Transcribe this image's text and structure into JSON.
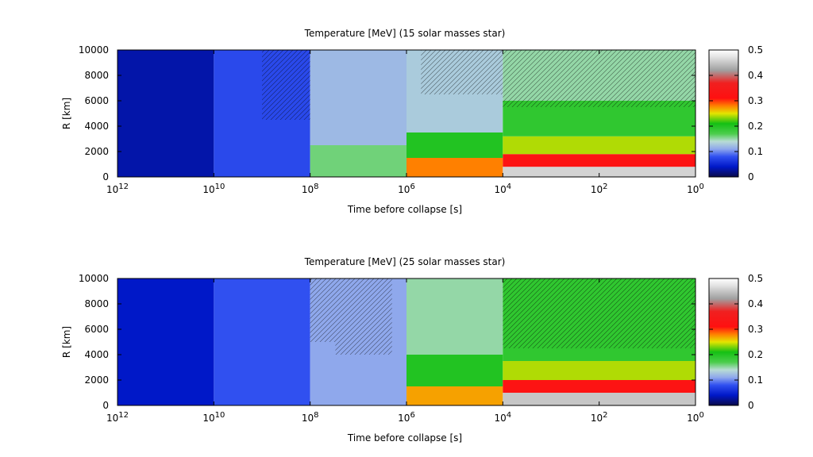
{
  "chart_data": [
    {
      "type": "heatmap",
      "title": "Temperature [MeV] (15 solar masses star)",
      "xlabel": "Time before collapse [s]",
      "ylabel": "R [km]",
      "x_scale": "log",
      "x_reversed": true,
      "xlim": [
        1000000000000.0,
        1
      ],
      "x_ticks": [
        {
          "value": 1000000000000.0,
          "base": "10",
          "exp": "12"
        },
        {
          "value": 10000000000.0,
          "base": "10",
          "exp": "10"
        },
        {
          "value": 100000000.0,
          "base": "10",
          "exp": "8"
        },
        {
          "value": 1000000.0,
          "base": "10",
          "exp": "6"
        },
        {
          "value": 10000.0,
          "base": "10",
          "exp": "4"
        },
        {
          "value": 100.0,
          "base": "10",
          "exp": "2"
        },
        {
          "value": 1,
          "base": "10",
          "exp": "0"
        }
      ],
      "ylim": [
        0,
        10000
      ],
      "y_ticks": [
        "0",
        "2000",
        "4000",
        "6000",
        "8000",
        "10000"
      ],
      "colorbar": {
        "range": [
          0,
          0.5
        ],
        "ticks": [
          "0",
          "0.1",
          "0.2",
          "0.3",
          "0.4",
          "0.5"
        ],
        "colors": [
          {
            "v": 0.0,
            "c": "#0a0a4a"
          },
          {
            "v": 0.04,
            "c": "#0018c8"
          },
          {
            "v": 0.08,
            "c": "#3050f0"
          },
          {
            "v": 0.11,
            "c": "#8fa8ec"
          },
          {
            "v": 0.14,
            "c": "#b8dcd4"
          },
          {
            "v": 0.17,
            "c": "#4ccd4c"
          },
          {
            "v": 0.21,
            "c": "#14c014"
          },
          {
            "v": 0.25,
            "c": "#e4e400"
          },
          {
            "v": 0.28,
            "c": "#ff8000"
          },
          {
            "v": 0.31,
            "c": "#ff1010"
          },
          {
            "v": 0.37,
            "c": "#f02020"
          },
          {
            "v": 0.42,
            "c": "#a0a0a0"
          },
          {
            "v": 0.47,
            "c": "#e0e0e0"
          },
          {
            "v": 0.5,
            "c": "#ffffff"
          }
        ]
      },
      "regions": [
        {
          "t0": 1000000000000.0,
          "t1": 10000000000.0,
          "r0": 0,
          "r1": 10000,
          "T": 0.03
        },
        {
          "t0": 10000000000.0,
          "t1": 100000000.0,
          "r0": 0,
          "r1": 10000,
          "T": 0.075
        },
        {
          "t0": 100000000.0,
          "t1": 1000000.0,
          "r0": 0,
          "r1": 2500,
          "T": 0.16
        },
        {
          "t0": 100000000.0,
          "t1": 1000000.0,
          "r0": 2500,
          "r1": 10000,
          "T": 0.12
        },
        {
          "t0": 1000000.0,
          "t1": 10000.0,
          "r0": 0,
          "r1": 1500,
          "T": 0.28
        },
        {
          "t0": 1000000.0,
          "t1": 10000.0,
          "r0": 1500,
          "r1": 3500,
          "T": 0.2
        },
        {
          "t0": 1000000.0,
          "t1": 10000.0,
          "r0": 3500,
          "r1": 10000,
          "T": 0.13
        },
        {
          "t0": 10000.0,
          "t1": 1,
          "r0": 0,
          "r1": 800,
          "T": 0.46
        },
        {
          "t0": 10000.0,
          "t1": 1,
          "r0": 800,
          "r1": 1800,
          "T": 0.32
        },
        {
          "t0": 10000.0,
          "t1": 1,
          "r0": 1800,
          "r1": 3200,
          "T": 0.24
        },
        {
          "t0": 10000.0,
          "t1": 1,
          "r0": 3200,
          "r1": 6000,
          "T": 0.19
        },
        {
          "t0": 10000.0,
          "t1": 1,
          "r0": 6000,
          "r1": 10000,
          "T": 0.15
        }
      ]
    },
    {
      "type": "heatmap",
      "title": "Temperature [MeV] (25 solar masses star)",
      "xlabel": "Time before collapse [s]",
      "ylabel": "R [km]",
      "x_scale": "log",
      "x_reversed": true,
      "xlim": [
        1000000000000.0,
        1
      ],
      "x_ticks": [
        {
          "value": 1000000000000.0,
          "base": "10",
          "exp": "12"
        },
        {
          "value": 10000000000.0,
          "base": "10",
          "exp": "10"
        },
        {
          "value": 100000000.0,
          "base": "10",
          "exp": "8"
        },
        {
          "value": 1000000.0,
          "base": "10",
          "exp": "6"
        },
        {
          "value": 10000.0,
          "base": "10",
          "exp": "4"
        },
        {
          "value": 100.0,
          "base": "10",
          "exp": "2"
        },
        {
          "value": 1,
          "base": "10",
          "exp": "0"
        }
      ],
      "ylim": [
        0,
        10000
      ],
      "y_ticks": [
        "0",
        "2000",
        "4000",
        "6000",
        "8000",
        "10000"
      ],
      "colorbar": {
        "range": [
          0,
          0.5
        ],
        "ticks": [
          "0",
          "0.1",
          "0.2",
          "0.3",
          "0.4",
          "0.5"
        ],
        "colors": [
          {
            "v": 0.0,
            "c": "#0a0a4a"
          },
          {
            "v": 0.04,
            "c": "#0018c8"
          },
          {
            "v": 0.08,
            "c": "#3050f0"
          },
          {
            "v": 0.11,
            "c": "#8fa8ec"
          },
          {
            "v": 0.14,
            "c": "#b8dcd4"
          },
          {
            "v": 0.17,
            "c": "#4ccd4c"
          },
          {
            "v": 0.21,
            "c": "#14c014"
          },
          {
            "v": 0.25,
            "c": "#e4e400"
          },
          {
            "v": 0.28,
            "c": "#ff8000"
          },
          {
            "v": 0.31,
            "c": "#ff1010"
          },
          {
            "v": 0.37,
            "c": "#f02020"
          },
          {
            "v": 0.42,
            "c": "#a0a0a0"
          },
          {
            "v": 0.47,
            "c": "#e0e0e0"
          },
          {
            "v": 0.5,
            "c": "#ffffff"
          }
        ]
      },
      "regions": [
        {
          "t0": 1000000000000.0,
          "t1": 10000000000.0,
          "r0": 0,
          "r1": 10000,
          "T": 0.04
        },
        {
          "t0": 10000000000.0,
          "t1": 100000000.0,
          "r0": 0,
          "r1": 10000,
          "T": 0.08
        },
        {
          "t0": 100000000.0,
          "t1": 1000000.0,
          "r0": 0,
          "r1": 10000,
          "T": 0.11
        },
        {
          "t0": 1000000.0,
          "t1": 10000.0,
          "r0": 0,
          "r1": 1500,
          "T": 0.27
        },
        {
          "t0": 1000000.0,
          "t1": 10000.0,
          "r0": 1500,
          "r1": 4000,
          "T": 0.2
        },
        {
          "t0": 1000000.0,
          "t1": 10000.0,
          "r0": 4000,
          "r1": 10000,
          "T": 0.15
        },
        {
          "t0": 10000.0,
          "t1": 1,
          "r0": 0,
          "r1": 1000,
          "T": 0.45
        },
        {
          "t0": 10000.0,
          "t1": 1,
          "r0": 1000,
          "r1": 2000,
          "T": 0.32
        },
        {
          "t0": 10000.0,
          "t1": 1,
          "r0": 2000,
          "r1": 3500,
          "T": 0.24
        },
        {
          "t0": 10000.0,
          "t1": 1,
          "r0": 3500,
          "r1": 10000,
          "T": 0.19
        }
      ]
    }
  ]
}
